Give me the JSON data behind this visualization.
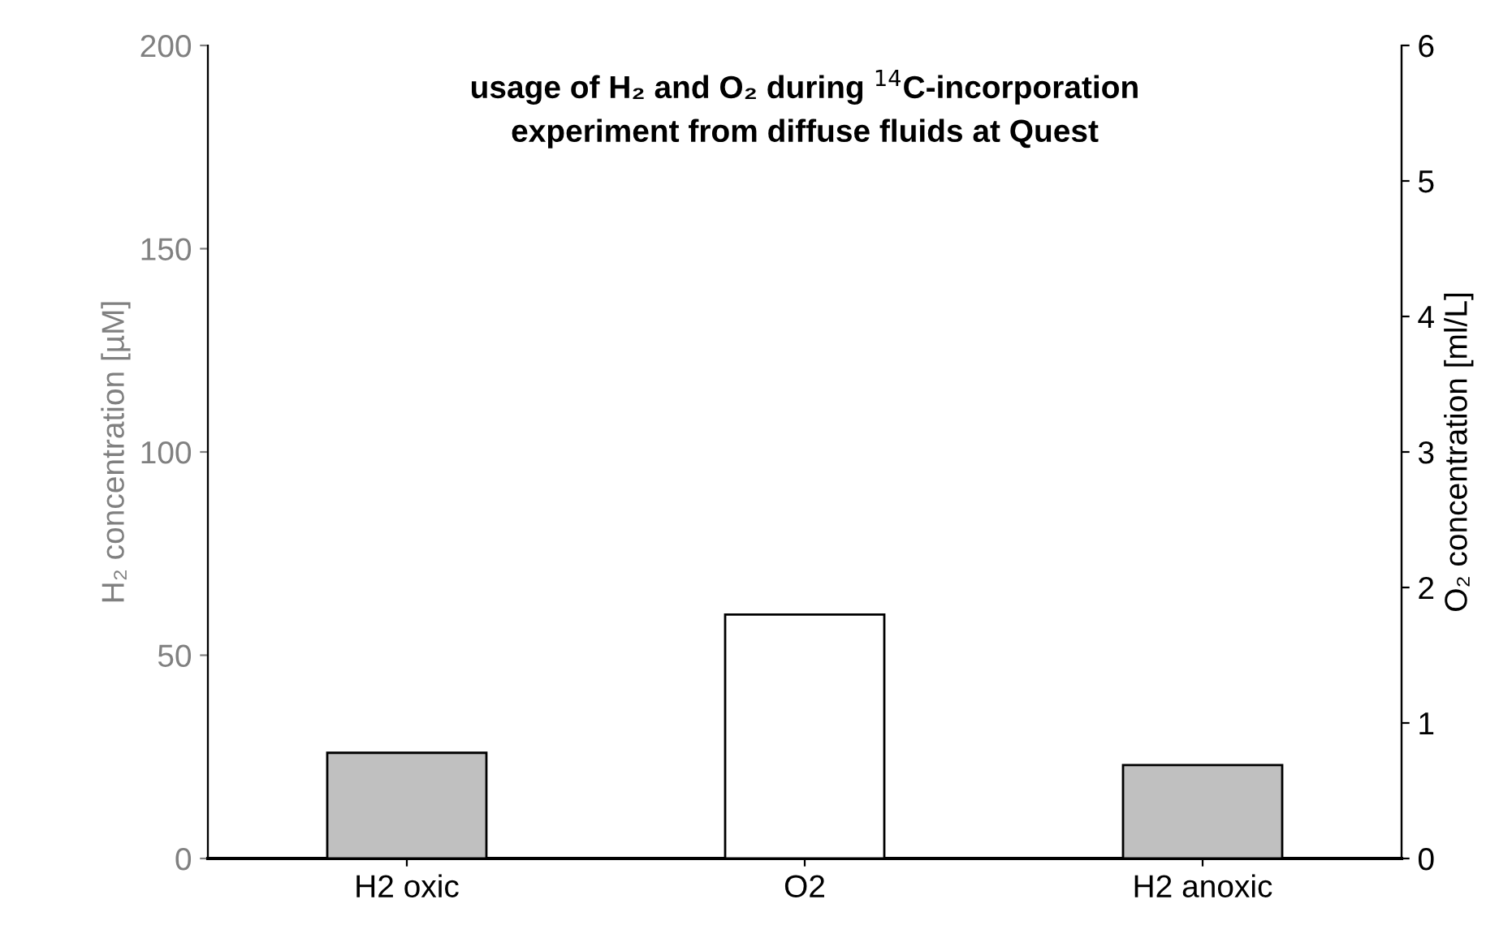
{
  "chart_data": {
    "type": "bar",
    "title": "usage of H₂ and O₂ during $^{14}$C-incorporation\nexperiment from diffuse fluids at Quest",
    "categories": [
      "H2 oxic",
      "O2",
      "H2 anoxic"
    ],
    "series": [
      {
        "color": "#c0c0c0",
        "values": [
          26,
          null,
          23
        ]
      },
      {
        "color": "#ffffff",
        "values": [
          null,
          1.8,
          null
        ],
        "axis": "y2"
      }
    ],
    "ylabel": "H₂ concentration [µM]",
    "y2label": "O₂ concentration [ml/L]",
    "ylim": [
      0,
      200
    ],
    "yticks": [
      0,
      50,
      100,
      150,
      200
    ],
    "y2lim": [
      0,
      6
    ],
    "y2ticks": [
      0,
      1,
      2,
      3,
      4,
      5,
      6
    ],
    "grid": false,
    "legend": false
  }
}
